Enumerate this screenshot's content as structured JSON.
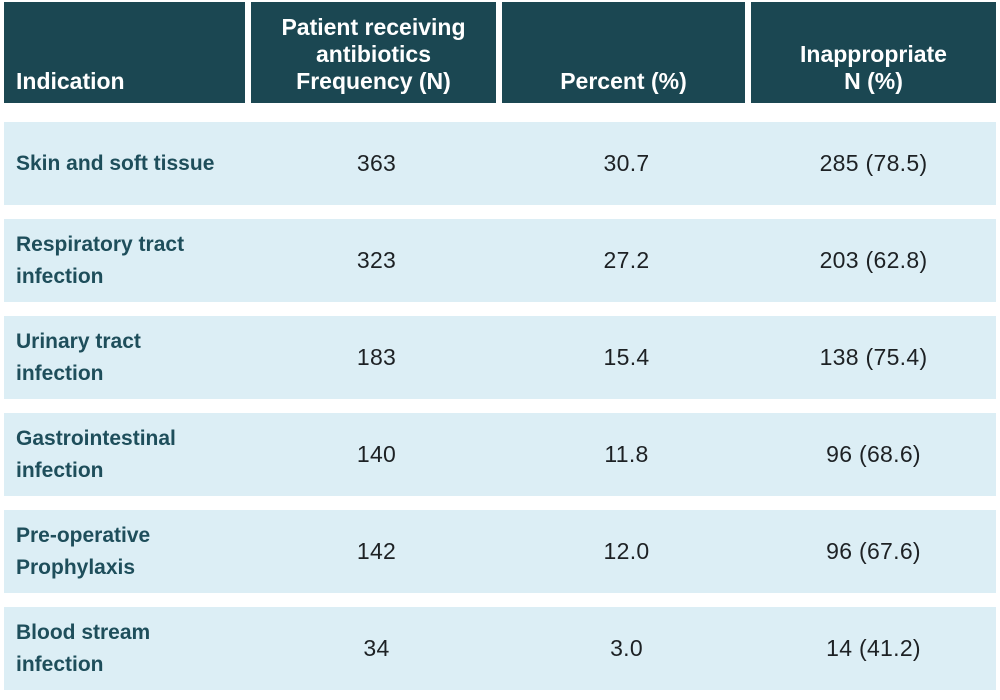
{
  "colors": {
    "header_background": "#1b4752",
    "header_text": "#ffffff",
    "row_background": "#dceef5",
    "indication_text": "#1e4e5b",
    "value_text": "#1d2124",
    "gap": "#ffffff"
  },
  "table": {
    "headers": [
      "Indication",
      "Patient receiving\nantibiotics\nFrequency (N)",
      "Percent (%)",
      "Inappropriate\nN (%)"
    ],
    "rows": [
      {
        "indication": "Skin and soft tissue",
        "frequency": "363",
        "percent": "30.7",
        "inappropriate": "285 (78.5)"
      },
      {
        "indication": "Respiratory tract\ninfection",
        "frequency": "323",
        "percent": "27.2",
        "inappropriate": "203 (62.8)"
      },
      {
        "indication": "Urinary tract\ninfection",
        "frequency": "183",
        "percent": "15.4",
        "inappropriate": "138 (75.4)"
      },
      {
        "indication": "Gastrointestinal\ninfection",
        "frequency": "140",
        "percent": "11.8",
        "inappropriate": "96 (68.6)"
      },
      {
        "indication": "Pre-operative\nProphylaxis",
        "frequency": "142",
        "percent": "12.0",
        "inappropriate": "96 (67.6)"
      },
      {
        "indication": "Blood stream\ninfection",
        "frequency": "34",
        "percent": "3.0",
        "inappropriate": "14 (41.2)"
      }
    ]
  },
  "chart_data": {
    "type": "table",
    "title": "",
    "columns": [
      "Indication",
      "Patient receiving antibiotics Frequency (N)",
      "Percent (%)",
      "Inappropriate N (%)"
    ],
    "rows": [
      [
        "Skin and soft tissue",
        363,
        30.7,
        "285 (78.5)"
      ],
      [
        "Respiratory tract infection",
        323,
        27.2,
        "203 (62.8)"
      ],
      [
        "Urinary tract infection",
        183,
        15.4,
        "138 (75.4)"
      ],
      [
        "Gastrointestinal infection",
        140,
        11.8,
        "96 (68.6)"
      ],
      [
        "Pre-operative Prophylaxis",
        142,
        12.0,
        "96 (67.6)"
      ],
      [
        "Blood stream infection",
        34,
        3.0,
        "14 (41.2)"
      ]
    ]
  }
}
